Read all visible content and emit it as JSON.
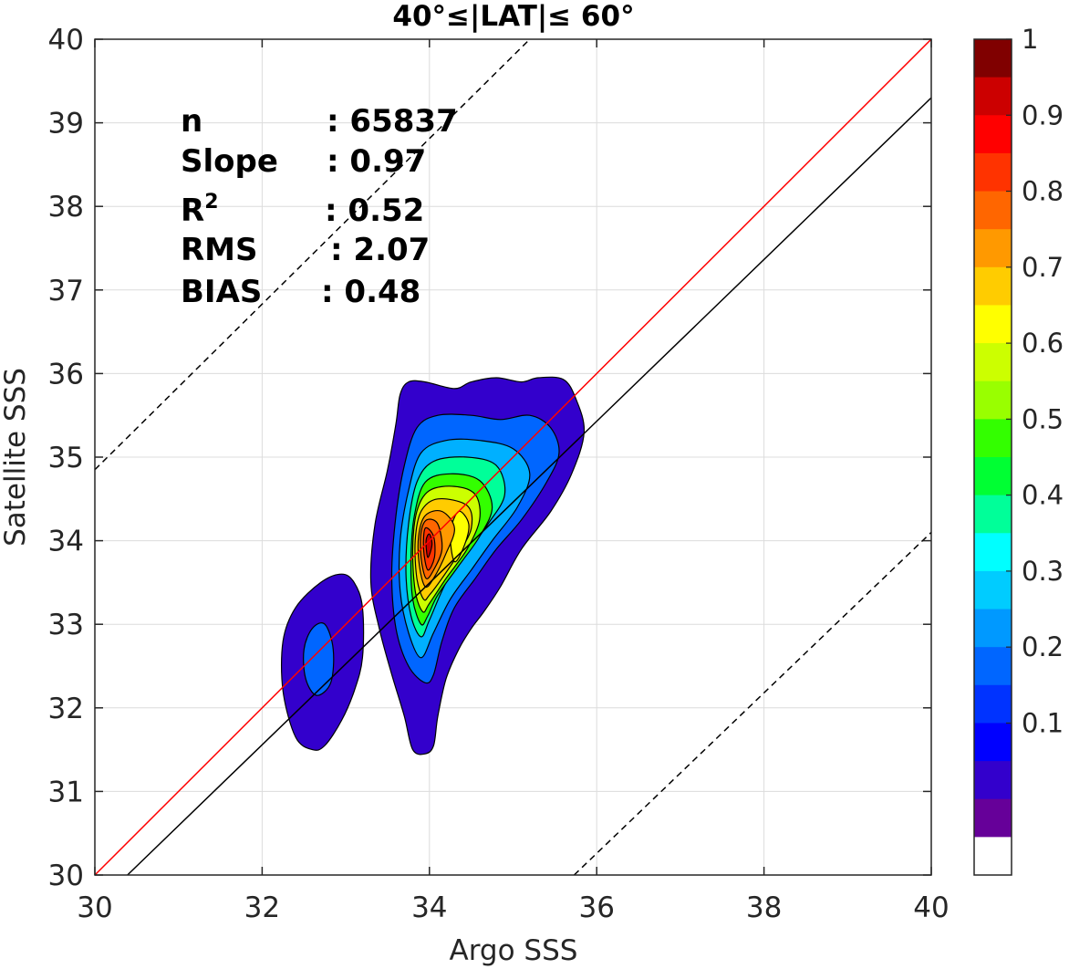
{
  "chart_data": {
    "type": "contour",
    "title": "40°≤|LAT|≤ 60°",
    "xlabel": "Argo SSS",
    "ylabel": "Satellite SSS",
    "xlim": [
      30,
      40
    ],
    "ylim": [
      30,
      40
    ],
    "xticks": [
      "30",
      "32",
      "34",
      "36",
      "38",
      "40"
    ],
    "yticks": [
      "30",
      "31",
      "32",
      "33",
      "34",
      "35",
      "36",
      "37",
      "38",
      "39",
      "40"
    ],
    "grid": true,
    "stats": [
      {
        "label": "n",
        "value": ": 65837"
      },
      {
        "label": "Slope",
        "value": ": 0.97"
      },
      {
        "label": "R",
        "sup": "2",
        "value": ": 0.52"
      },
      {
        "label": "RMS",
        "value": ": 2.07"
      },
      {
        "label": "BIAS",
        "value": ": 0.48"
      }
    ],
    "reference_lines": [
      {
        "kind": "identity",
        "color": "#ff0000",
        "dashed": false,
        "points": [
          [
            30,
            30
          ],
          [
            40,
            40
          ]
        ]
      },
      {
        "kind": "regression",
        "color": "#000000",
        "dashed": false,
        "points": [
          [
            30.39,
            30
          ],
          [
            40,
            39.3
          ]
        ]
      },
      {
        "kind": "upper-bound",
        "color": "#000000",
        "dashed": true,
        "points": [
          [
            30,
            34.85
          ],
          [
            35.2,
            40
          ]
        ]
      },
      {
        "kind": "lower-bound",
        "color": "#000000",
        "dashed": true,
        "points": [
          [
            35.73,
            30
          ],
          [
            40,
            34.1
          ]
        ]
      }
    ],
    "contour_levels": [
      {
        "level": 0.1,
        "color": "#3300cc",
        "regions": [
          [
            [
              32.6,
              31.5
            ],
            [
              32.4,
              31.65
            ],
            [
              32.25,
              32.2
            ],
            [
              32.25,
              32.8
            ],
            [
              32.4,
              33.2
            ],
            [
              32.7,
              33.5
            ],
            [
              32.95,
              33.6
            ],
            [
              33.1,
              33.5
            ],
            [
              33.2,
              33.2
            ],
            [
              33.2,
              32.6
            ],
            [
              33.1,
              32.2
            ],
            [
              32.95,
              31.85
            ],
            [
              32.75,
              31.55
            ]
          ],
          [
            [
              33.95,
              31.45
            ],
            [
              33.8,
              31.5
            ],
            [
              33.7,
              31.9
            ],
            [
              33.55,
              32.4
            ],
            [
              33.4,
              32.95
            ],
            [
              33.3,
              33.5
            ],
            [
              33.35,
              34.2
            ],
            [
              33.5,
              34.85
            ],
            [
              33.6,
              35.4
            ],
            [
              33.65,
              35.75
            ],
            [
              33.75,
              35.9
            ],
            [
              33.95,
              35.9
            ],
            [
              34.3,
              35.82
            ],
            [
              34.5,
              35.9
            ],
            [
              34.8,
              35.95
            ],
            [
              35.1,
              35.9
            ],
            [
              35.3,
              35.95
            ],
            [
              35.6,
              35.93
            ],
            [
              35.75,
              35.7
            ],
            [
              35.85,
              35.3
            ],
            [
              35.7,
              34.8
            ],
            [
              35.45,
              34.35
            ],
            [
              35.1,
              33.9
            ],
            [
              34.85,
              33.45
            ],
            [
              34.65,
              33.15
            ],
            [
              34.5,
              32.95
            ],
            [
              34.35,
              32.7
            ],
            [
              34.2,
              32.35
            ],
            [
              34.1,
              31.9
            ],
            [
              34.05,
              31.55
            ]
          ]
        ]
      },
      {
        "level": 0.2,
        "color": "#0000ff",
        "regions": []
      },
      {
        "level": 0.25,
        "color": "#0066ff",
        "regions": [
          [
            [
              32.65,
              32.15
            ],
            [
              32.52,
              32.35
            ],
            [
              32.5,
              32.7
            ],
            [
              32.6,
              32.95
            ],
            [
              32.75,
              33.0
            ],
            [
              32.85,
              32.7
            ],
            [
              32.82,
              32.3
            ]
          ],
          [
            [
              33.95,
              32.3
            ],
            [
              33.75,
              32.5
            ],
            [
              33.6,
              32.95
            ],
            [
              33.55,
              33.6
            ],
            [
              33.6,
              34.3
            ],
            [
              33.7,
              34.9
            ],
            [
              33.85,
              35.35
            ],
            [
              34.1,
              35.5
            ],
            [
              34.5,
              35.5
            ],
            [
              34.85,
              35.45
            ],
            [
              35.2,
              35.5
            ],
            [
              35.45,
              35.35
            ],
            [
              35.55,
              35.05
            ],
            [
              35.4,
              34.7
            ],
            [
              35.1,
              34.25
            ],
            [
              34.8,
              33.9
            ],
            [
              34.55,
              33.55
            ],
            [
              34.3,
              33.2
            ],
            [
              34.15,
              32.8
            ],
            [
              34.05,
              32.4
            ]
          ]
        ]
      },
      {
        "level": 0.3,
        "color": "#00b0ff",
        "regions": [
          [
            [
              33.9,
              32.6
            ],
            [
              33.75,
              32.9
            ],
            [
              33.65,
              33.4
            ],
            [
              33.65,
              34.0
            ],
            [
              33.75,
              34.6
            ],
            [
              33.9,
              35.05
            ],
            [
              34.2,
              35.2
            ],
            [
              34.6,
              35.2
            ],
            [
              35.0,
              35.1
            ],
            [
              35.2,
              34.8
            ],
            [
              35.05,
              34.4
            ],
            [
              34.75,
              34.0
            ],
            [
              34.5,
              33.65
            ],
            [
              34.25,
              33.3
            ],
            [
              34.05,
              32.9
            ]
          ]
        ]
      },
      {
        "level": 0.4,
        "color": "#00ff99",
        "regions": [
          [
            [
              33.9,
              32.85
            ],
            [
              33.78,
              33.1
            ],
            [
              33.72,
              33.6
            ],
            [
              33.75,
              34.2
            ],
            [
              33.85,
              34.7
            ],
            [
              34.05,
              34.95
            ],
            [
              34.45,
              35.0
            ],
            [
              34.8,
              34.9
            ],
            [
              34.9,
              34.55
            ],
            [
              34.7,
              34.2
            ],
            [
              34.45,
              33.85
            ],
            [
              34.2,
              33.5
            ],
            [
              34.0,
              33.05
            ]
          ]
        ]
      },
      {
        "level": 0.5,
        "color": "#33ff00",
        "regions": [
          [
            [
              33.9,
              33.0
            ],
            [
              33.8,
              33.3
            ],
            [
              33.78,
              33.8
            ],
            [
              33.82,
              34.3
            ],
            [
              33.95,
              34.7
            ],
            [
              34.25,
              34.8
            ],
            [
              34.6,
              34.72
            ],
            [
              34.75,
              34.4
            ],
            [
              34.6,
              34.05
            ],
            [
              34.35,
              33.7
            ],
            [
              34.1,
              33.35
            ],
            [
              33.98,
              33.1
            ]
          ]
        ]
      },
      {
        "level": 0.6,
        "color": "#ccff00",
        "regions": [
          [
            [
              33.92,
              33.15
            ],
            [
              33.83,
              33.4
            ],
            [
              33.8,
              33.9
            ],
            [
              33.85,
              34.35
            ],
            [
              34.0,
              34.6
            ],
            [
              34.3,
              34.65
            ],
            [
              34.55,
              34.55
            ],
            [
              34.6,
              34.25
            ],
            [
              34.45,
              33.9
            ],
            [
              34.2,
              33.55
            ],
            [
              34.0,
              33.25
            ]
          ]
        ]
      },
      {
        "level": 0.7,
        "color": "#ffcc00",
        "regions": [
          [
            [
              33.93,
              33.3
            ],
            [
              33.85,
              33.55
            ],
            [
              33.83,
              34.0
            ],
            [
              33.9,
              34.35
            ],
            [
              34.1,
              34.5
            ],
            [
              34.45,
              34.42
            ],
            [
              34.5,
              34.15
            ],
            [
              34.35,
              33.85
            ],
            [
              34.15,
              33.55
            ],
            [
              34.0,
              33.35
            ]
          ]
        ]
      },
      {
        "level": 0.75,
        "color": "#ffff00",
        "regions": [
          [
            [
              34.3,
              33.75
            ],
            [
              34.25,
              34.1
            ],
            [
              34.35,
              34.35
            ],
            [
              34.47,
              34.2
            ],
            [
              34.42,
              33.95
            ]
          ]
        ]
      },
      {
        "level": 0.8,
        "color": "#ff9900",
        "regions": [
          [
            [
              33.95,
              33.45
            ],
            [
              33.88,
              33.7
            ],
            [
              33.87,
              34.05
            ],
            [
              33.95,
              34.3
            ],
            [
              34.15,
              34.35
            ],
            [
              34.3,
              34.15
            ],
            [
              34.2,
              33.85
            ],
            [
              34.05,
              33.55
            ]
          ]
        ]
      },
      {
        "level": 0.85,
        "color": "#ff6600",
        "regions": [
          [
            [
              33.96,
              33.55
            ],
            [
              33.9,
              33.8
            ],
            [
              33.9,
              34.1
            ],
            [
              33.97,
              34.25
            ],
            [
              34.1,
              34.2
            ],
            [
              34.15,
              33.9
            ],
            [
              34.05,
              33.65
            ]
          ]
        ]
      },
      {
        "level": 0.9,
        "color": "#ff3300",
        "regions": [
          [
            [
              33.98,
              33.65
            ],
            [
              33.93,
              33.9
            ],
            [
              33.95,
              34.15
            ],
            [
              34.05,
              34.05
            ],
            [
              34.06,
              33.8
            ]
          ]
        ]
      },
      {
        "level": 1.0,
        "color": "#cc0000",
        "regions": [
          [
            [
              33.98,
              33.8
            ],
            [
              33.96,
              34.0
            ],
            [
              34.0,
              34.08
            ],
            [
              34.03,
              33.95
            ]
          ]
        ]
      }
    ],
    "colorbar": {
      "ticks": [
        "1",
        "0.9",
        "0.8",
        "0.7",
        "0.6",
        "0.5",
        "0.4",
        "0.3",
        "0.2",
        "0.1"
      ],
      "tick_values": [
        1.0,
        0.9,
        0.8,
        0.7,
        0.6,
        0.5,
        0.4,
        0.3,
        0.2,
        0.1
      ],
      "colors_top_to_bottom": [
        "#800000",
        "#cc0000",
        "#ff0000",
        "#ff3300",
        "#ff6600",
        "#ff9900",
        "#ffcc00",
        "#ffff00",
        "#ccff00",
        "#99ff00",
        "#33ff00",
        "#00ff33",
        "#00ff99",
        "#00ffff",
        "#00ccff",
        "#0099ff",
        "#0066ff",
        "#0033ff",
        "#0000ff",
        "#3300cc",
        "#660099",
        "#ffffff"
      ]
    }
  }
}
